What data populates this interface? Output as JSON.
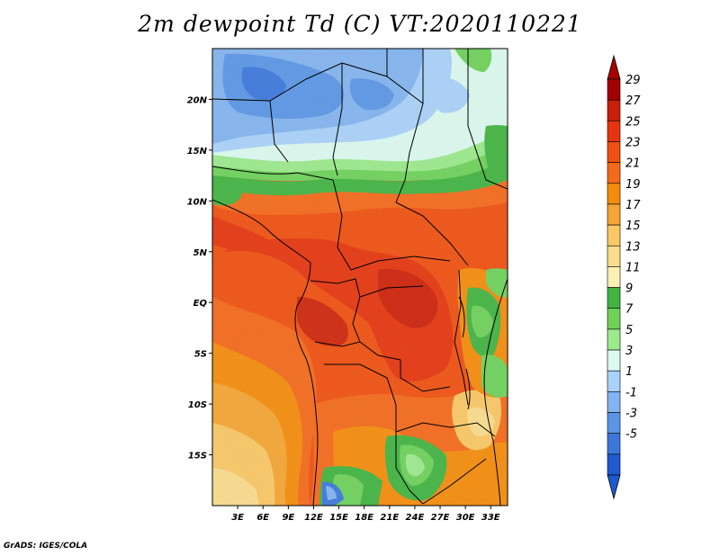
{
  "map": {
    "title": "2m dewpoint Td (C) VT:2020110221",
    "footer": "GrADS: IGES/COLA",
    "lon_range": [
      0,
      35
    ],
    "lat_range": [
      -20,
      25
    ],
    "lon_ticks": [
      "3E",
      "6E",
      "9E",
      "12E",
      "15E",
      "18E",
      "21E",
      "24E",
      "27E",
      "30E",
      "33E"
    ],
    "lat_ticks": [
      "20N",
      "15N",
      "10N",
      "5N",
      "EQ",
      "5S",
      "10S",
      "15S"
    ]
  },
  "colorbar": {
    "labels": [
      "29",
      "27",
      "25",
      "23",
      "21",
      "19",
      "17",
      "15",
      "13",
      "11",
      "9",
      "7",
      "5",
      "3",
      "1",
      "-1",
      "-3",
      "-5"
    ],
    "colors": [
      "#a50000",
      "#c81e0a",
      "#e6350e",
      "#f0500f",
      "#f5691a",
      "#f58c0a",
      "#f5a532",
      "#fac864",
      "#fadc8c",
      "#faf0b4",
      "#41b441",
      "#6ed25a",
      "#9bea8c",
      "#dcfaf0",
      "#aad2fa",
      "#82b4f0",
      "#5a96e6",
      "#3c78dc",
      "#1e5ad2"
    ],
    "top_arrow_color": "#a50000",
    "bottom_arrow_color": "#1e5ad2"
  }
}
